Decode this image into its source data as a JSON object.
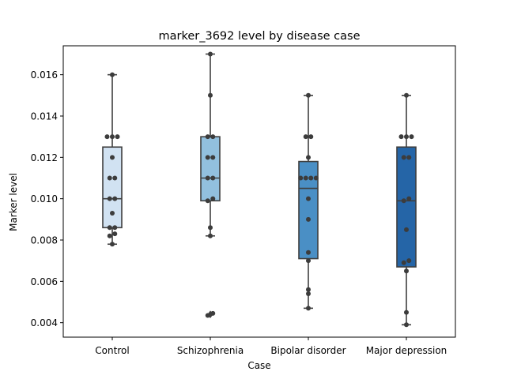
{
  "chart_data": {
    "type": "box",
    "title": "marker_3692 level by disease case",
    "xlabel": "Case",
    "ylabel": "Marker level",
    "ylim": [
      0.0033,
      0.0174
    ],
    "yticks": [
      0.004,
      0.006,
      0.008,
      0.01,
      0.012,
      0.014,
      0.016
    ],
    "ytick_labels": [
      "0.004",
      "0.006",
      "0.008",
      "0.010",
      "0.012",
      "0.014",
      "0.016"
    ],
    "categories": [
      "Control",
      "Schizophrenia",
      "Bipolar disorder",
      "Major depression"
    ],
    "colors": [
      "#d1e2f2",
      "#92c0de",
      "#4a8fc5",
      "#2565a7"
    ],
    "boxes": [
      {
        "q1": 0.0086,
        "median": 0.01,
        "q3": 0.0125,
        "whislo": 0.0078,
        "whishi": 0.016,
        "fliers": []
      },
      {
        "q1": 0.0099,
        "median": 0.011,
        "q3": 0.013,
        "whislo": 0.0082,
        "whishi": 0.017,
        "fliers": [
          0.00435,
          0.00445
        ]
      },
      {
        "q1": 0.0071,
        "median": 0.0105,
        "q3": 0.0118,
        "whislo": 0.0047,
        "whishi": 0.015,
        "fliers": []
      },
      {
        "q1": 0.0067,
        "median": 0.0099,
        "q3": 0.0125,
        "whislo": 0.0039,
        "whishi": 0.015,
        "fliers": []
      }
    ],
    "points": [
      [
        0.016,
        0.013,
        0.013,
        0.013,
        0.012,
        0.011,
        0.011,
        0.01,
        0.01,
        0.0093,
        0.0086,
        0.0086,
        0.0083,
        0.0082,
        0.0078
      ],
      [
        0.017,
        0.015,
        0.013,
        0.013,
        0.012,
        0.012,
        0.011,
        0.011,
        0.01,
        0.0099,
        0.0086,
        0.0082,
        0.00445,
        0.00435
      ],
      [
        0.015,
        0.013,
        0.013,
        0.012,
        0.011,
        0.011,
        0.011,
        0.011,
        0.01,
        0.009,
        0.0074,
        0.007,
        0.0056,
        0.0054,
        0.0047
      ],
      [
        0.015,
        0.013,
        0.013,
        0.013,
        0.012,
        0.012,
        0.01,
        0.0099,
        0.0085,
        0.007,
        0.0069,
        0.0065,
        0.0045,
        0.0039
      ]
    ]
  }
}
